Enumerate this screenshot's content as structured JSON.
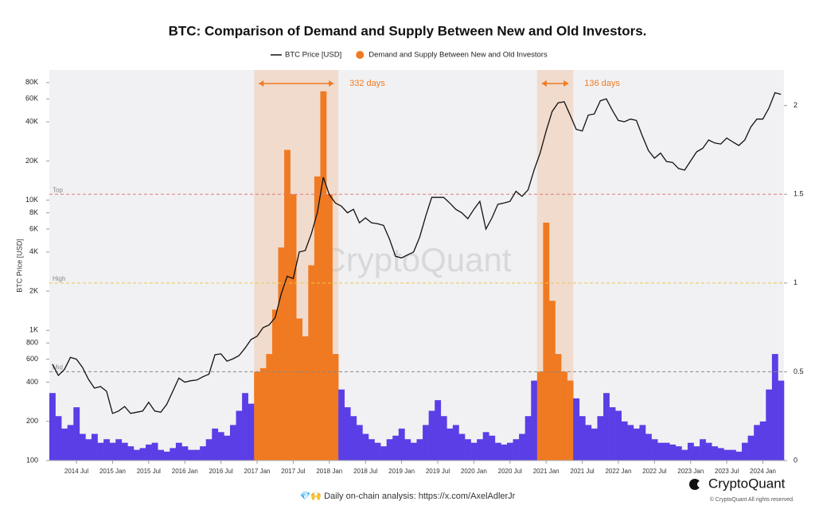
{
  "chart_data": {
    "type": "combo",
    "title": "BTC: Comparison of Demand and Supply Between New and Old Investors.",
    "y_label": "BTC Price [USD]",
    "watermark": "CryptoQuant",
    "log_y": true,
    "ylim": [
      100,
      100000
    ],
    "yticks": [
      100,
      200,
      400,
      600,
      800,
      {
        "value": 1000,
        "label": "1K"
      },
      {
        "value": 2000,
        "label": "2K"
      },
      {
        "value": 4000,
        "label": "4K"
      },
      {
        "value": 6000,
        "label": "6K"
      },
      {
        "value": 8000,
        "label": "8K"
      },
      {
        "value": 10000,
        "label": "10K"
      },
      {
        "value": 20000,
        "label": "20K"
      },
      {
        "value": 40000,
        "label": "40K"
      },
      {
        "value": 60000,
        "label": "60K"
      },
      {
        "value": 80000,
        "label": "80K"
      }
    ],
    "y2lim": [
      0,
      2.2
    ],
    "y2ticks": [
      0,
      0.5,
      1,
      1.5,
      2
    ],
    "x": [
      "2014 Mar",
      "2014 Apr",
      "2014 May",
      "2014 Jun",
      "2014 Jul",
      "2014 Aug",
      "2014 Sep",
      "2014 Oct",
      "2014 Nov",
      "2014 Dec",
      "2015 Jan",
      "2015 Feb",
      "2015 Mar",
      "2015 Apr",
      "2015 May",
      "2015 Jun",
      "2015 Jul",
      "2015 Aug",
      "2015 Sep",
      "2015 Oct",
      "2015 Nov",
      "2015 Dec",
      "2016 Jan",
      "2016 Feb",
      "2016 Mar",
      "2016 Apr",
      "2016 May",
      "2016 Jun",
      "2016 Jul",
      "2016 Aug",
      "2016 Sep",
      "2016 Oct",
      "2016 Nov",
      "2016 Dec",
      "2017 Jan",
      "2017 Feb",
      "2017 Mar",
      "2017 Apr",
      "2017 May",
      "2017 Jun",
      "2017 Jul",
      "2017 Aug",
      "2017 Sep",
      "2017 Oct",
      "2017 Nov",
      "2017 Dec",
      "2018 Jan",
      "2018 Feb",
      "2018 Mar",
      "2018 Apr",
      "2018 May",
      "2018 Jun",
      "2018 Jul",
      "2018 Aug",
      "2018 Sep",
      "2018 Oct",
      "2018 Nov",
      "2018 Dec",
      "2019 Jan",
      "2019 Feb",
      "2019 Mar",
      "2019 Apr",
      "2019 May",
      "2019 Jun",
      "2019 Jul",
      "2019 Aug",
      "2019 Sep",
      "2019 Oct",
      "2019 Nov",
      "2019 Dec",
      "2020 Jan",
      "2020 Feb",
      "2020 Mar",
      "2020 Apr",
      "2020 May",
      "2020 Jun",
      "2020 Jul",
      "2020 Aug",
      "2020 Sep",
      "2020 Oct",
      "2020 Nov",
      "2020 Dec",
      "2021 Jan",
      "2021 Feb",
      "2021 Mar",
      "2021 Apr",
      "2021 May",
      "2021 Jun",
      "2021 Jul",
      "2021 Aug",
      "2021 Sep",
      "2021 Oct",
      "2021 Nov",
      "2021 Dec",
      "2022 Jan",
      "2022 Feb",
      "2022 Mar",
      "2022 Apr",
      "2022 May",
      "2022 Jun",
      "2022 Jul",
      "2022 Aug",
      "2022 Sep",
      "2022 Oct",
      "2022 Nov",
      "2022 Dec",
      "2023 Jan",
      "2023 Feb",
      "2023 Mar",
      "2023 Apr",
      "2023 May",
      "2023 Jun",
      "2023 Jul",
      "2023 Aug",
      "2023 Sep",
      "2023 Oct",
      "2023 Nov",
      "2023 Dec",
      "2024 Jan",
      "2024 Feb",
      "2024 Mar",
      "2024 Apr"
    ],
    "series": [
      {
        "name": "BTC Price [USD]",
        "type": "line",
        "color": "#111111",
        "values": [
          550,
          450,
          500,
          620,
          600,
          520,
          420,
          360,
          370,
          340,
          230,
          240,
          260,
          230,
          235,
          240,
          280,
          240,
          235,
          270,
          340,
          430,
          400,
          410,
          415,
          440,
          460,
          650,
          660,
          580,
          605,
          640,
          730,
          850,
          900,
          1050,
          1100,
          1250,
          1900,
          2600,
          2500,
          4000,
          4100,
          5500,
          8000,
          15000,
          11000,
          9500,
          9000,
          8000,
          8500,
          6700,
          7300,
          6700,
          6600,
          6400,
          5000,
          3700,
          3600,
          3800,
          4000,
          5200,
          7500,
          10500,
          10500,
          10500,
          9500,
          8500,
          8000,
          7200,
          8500,
          9800,
          6000,
          7300,
          9300,
          9500,
          9800,
          11700,
          10700,
          12000,
          17000,
          23000,
          34000,
          48000,
          56000,
          57000,
          45000,
          35000,
          34000,
          45000,
          46000,
          58000,
          60000,
          49000,
          41000,
          40000,
          42000,
          41000,
          31000,
          24000,
          21000,
          23000,
          19800,
          19500,
          17500,
          17000,
          20000,
          23500,
          25000,
          29000,
          27500,
          27000,
          30000,
          28000,
          26300,
          29000,
          36500,
          42000,
          42000,
          51000,
          67000,
          65000
        ]
      },
      {
        "name": "Demand and Supply Between New and Old Investors",
        "type": "bar",
        "axis": "y2",
        "color": "#f07a22",
        "outside_color": "#5b3ee6",
        "values": [
          0.38,
          0.25,
          0.18,
          0.2,
          0.3,
          0.15,
          0.12,
          0.15,
          0.1,
          0.12,
          0.1,
          0.12,
          0.1,
          0.08,
          0.06,
          0.07,
          0.09,
          0.1,
          0.06,
          0.05,
          0.07,
          0.1,
          0.08,
          0.06,
          0.06,
          0.08,
          0.12,
          0.18,
          0.16,
          0.14,
          0.2,
          0.28,
          0.38,
          0.32,
          0.5,
          0.52,
          0.6,
          0.85,
          1.2,
          1.75,
          1.5,
          0.8,
          0.7,
          1.1,
          1.6,
          2.08,
          1.5,
          0.6,
          0.4,
          0.3,
          0.25,
          0.2,
          0.15,
          0.12,
          0.1,
          0.08,
          0.12,
          0.14,
          0.18,
          0.12,
          0.1,
          0.12,
          0.2,
          0.28,
          0.34,
          0.25,
          0.18,
          0.2,
          0.15,
          0.12,
          0.1,
          0.12,
          0.16,
          0.14,
          0.1,
          0.09,
          0.1,
          0.12,
          0.15,
          0.25,
          0.45,
          0.5,
          1.34,
          0.9,
          0.6,
          0.5,
          0.45,
          0.35,
          0.25,
          0.2,
          0.18,
          0.25,
          0.38,
          0.3,
          0.28,
          0.22,
          0.2,
          0.18,
          0.2,
          0.15,
          0.12,
          0.1,
          0.1,
          0.09,
          0.08,
          0.06,
          0.1,
          0.08,
          0.12,
          0.1,
          0.08,
          0.07,
          0.06,
          0.06,
          0.05,
          0.1,
          0.14,
          0.2,
          0.22,
          0.4,
          0.6,
          0.45
        ]
      }
    ],
    "reference_lines": [
      {
        "value": 1.5,
        "label": "Top",
        "color": "#e07a7a"
      },
      {
        "value": 1,
        "label": "High",
        "color": "#e8c84a"
      },
      {
        "value": 0.5,
        "label": "Mid",
        "color": "#888888"
      }
    ],
    "highlights": [
      {
        "from": "2017 Jan",
        "to": "2018 Feb",
        "label": "332 days",
        "color": "#f07a22"
      },
      {
        "from": "2020 Dec",
        "to": "2021 May",
        "label": "136 days",
        "color": "#f07a22"
      }
    ]
  },
  "footer": {
    "note": "💎🙌 Daily on-chain analysis: https://x.com/AxelAdlerJr",
    "brand": "CryptoQuant",
    "copyright": "© CryptoQuant All rights reserved."
  }
}
